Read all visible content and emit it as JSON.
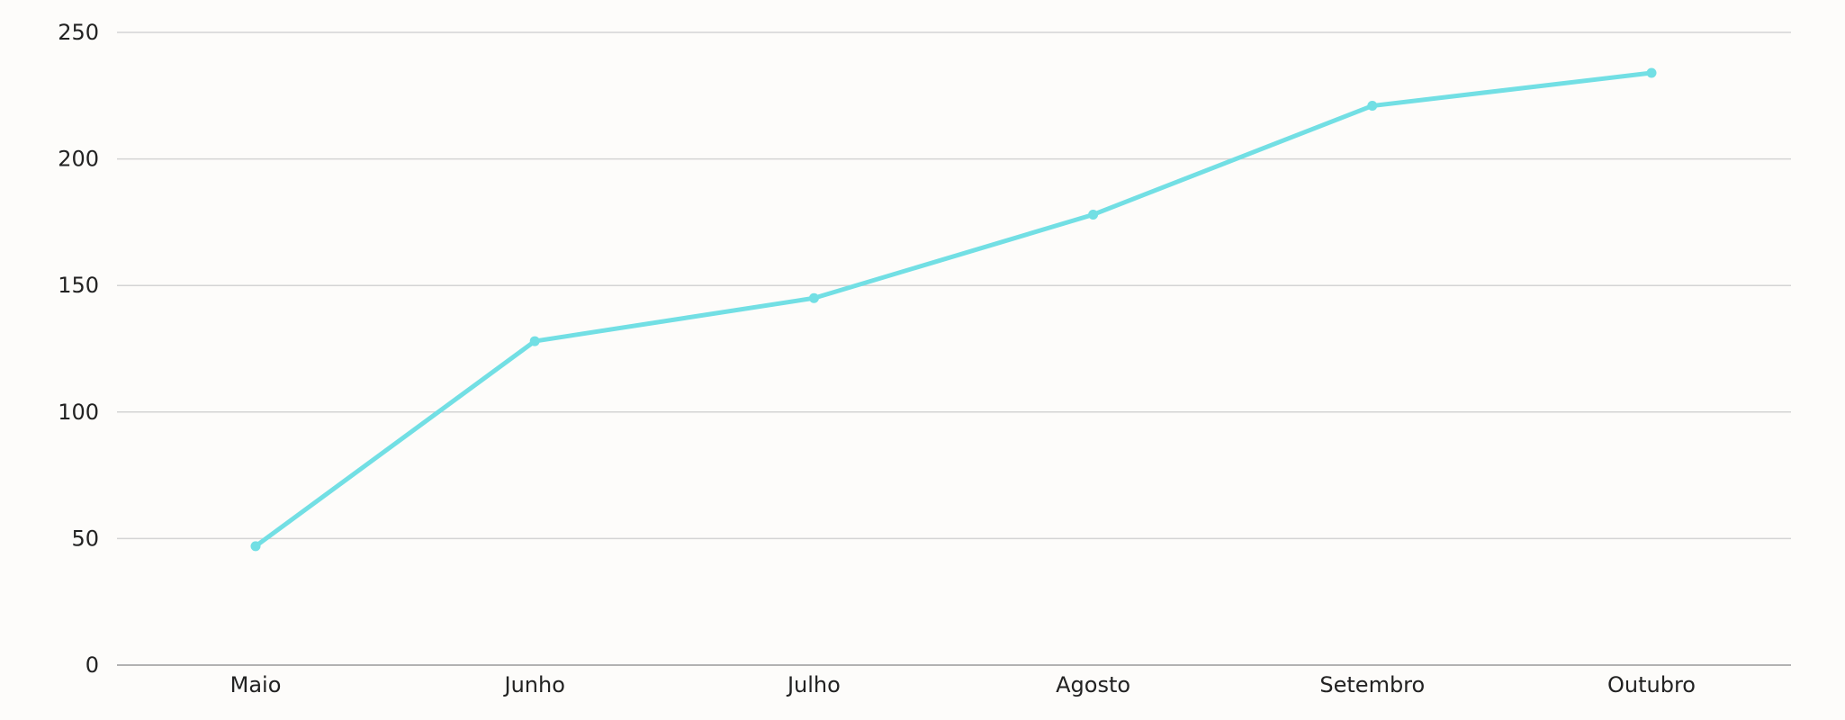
{
  "chart_data": {
    "type": "line",
    "title": "",
    "xlabel": "",
    "ylabel": "",
    "categories": [
      "Maio",
      "Junho",
      "Julho",
      "Agosto",
      "Setembro",
      "Outubro"
    ],
    "series": [
      {
        "values": [
          47,
          128,
          145,
          178,
          221,
          234
        ]
      }
    ],
    "ylim": [
      0,
      250
    ],
    "yticks": [
      0,
      50,
      100,
      150,
      200,
      250
    ],
    "grid": true,
    "legend": "none",
    "colors": {
      "series": "#72dfe4",
      "grid": "#d4d4d4",
      "baseline": "#9a9a9a",
      "text": "#222222",
      "background": "#fdfcfa"
    }
  }
}
